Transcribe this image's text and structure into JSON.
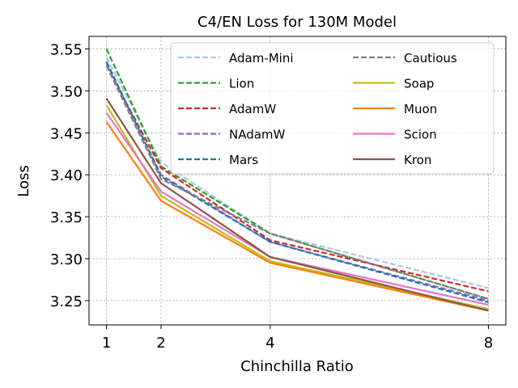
{
  "chart_data": {
    "type": "line",
    "title": "C4/EN Loss for 130M Model",
    "xlabel": "Chinchilla Ratio",
    "ylabel": "Loss",
    "x": [
      1,
      2,
      4,
      8
    ],
    "x_ticks": [
      "1",
      "2",
      "4",
      "8"
    ],
    "xlim": [
      0.68,
      8.32
    ],
    "ylim": [
      3.221,
      3.565
    ],
    "y_ticks": [
      "3.25",
      "3.30",
      "3.35",
      "3.40",
      "3.45",
      "3.50",
      "3.55"
    ],
    "y_tick_values": [
      3.25,
      3.3,
      3.35,
      3.4,
      3.45,
      3.5,
      3.55
    ],
    "grid": true,
    "legend_position": "top-right",
    "legend_columns": 2,
    "series": [
      {
        "name": "Adam-Mini",
        "color": "#aec7e8",
        "dashed": true,
        "values": [
          3.54,
          3.415,
          3.33,
          3.265
        ]
      },
      {
        "name": "Lion",
        "color": "#2ca02c",
        "dashed": true,
        "values": [
          3.55,
          3.41,
          3.33,
          3.252
        ]
      },
      {
        "name": "AdamW",
        "color": "#d62728",
        "dashed": true,
        "values": [
          3.53,
          3.408,
          3.322,
          3.261
        ]
      },
      {
        "name": "NAdamW",
        "color": "#9467bd",
        "dashed": true,
        "values": [
          3.533,
          3.4,
          3.32,
          3.25
        ]
      },
      {
        "name": "Mars",
        "color": "#1f77b4",
        "dashed": true,
        "values": [
          3.535,
          3.398,
          3.32,
          3.248
        ]
      },
      {
        "name": "Cautious",
        "color": "#7f7f7f",
        "dashed": true,
        "values": [
          3.53,
          3.395,
          3.33,
          3.252
        ]
      },
      {
        "name": "Soap",
        "color": "#bcbd22",
        "dashed": false,
        "values": [
          3.483,
          3.375,
          3.297,
          3.24
        ]
      },
      {
        "name": "Muon",
        "color": "#ff7f0e",
        "dashed": false,
        "values": [
          3.463,
          3.369,
          3.295,
          3.238
        ]
      },
      {
        "name": "Scion",
        "color": "#e377c2",
        "dashed": false,
        "values": [
          3.474,
          3.38,
          3.302,
          3.245
        ]
      },
      {
        "name": "Kron",
        "color": "#8c564b",
        "dashed": false,
        "values": [
          3.491,
          3.39,
          3.302,
          3.238
        ]
      }
    ]
  }
}
